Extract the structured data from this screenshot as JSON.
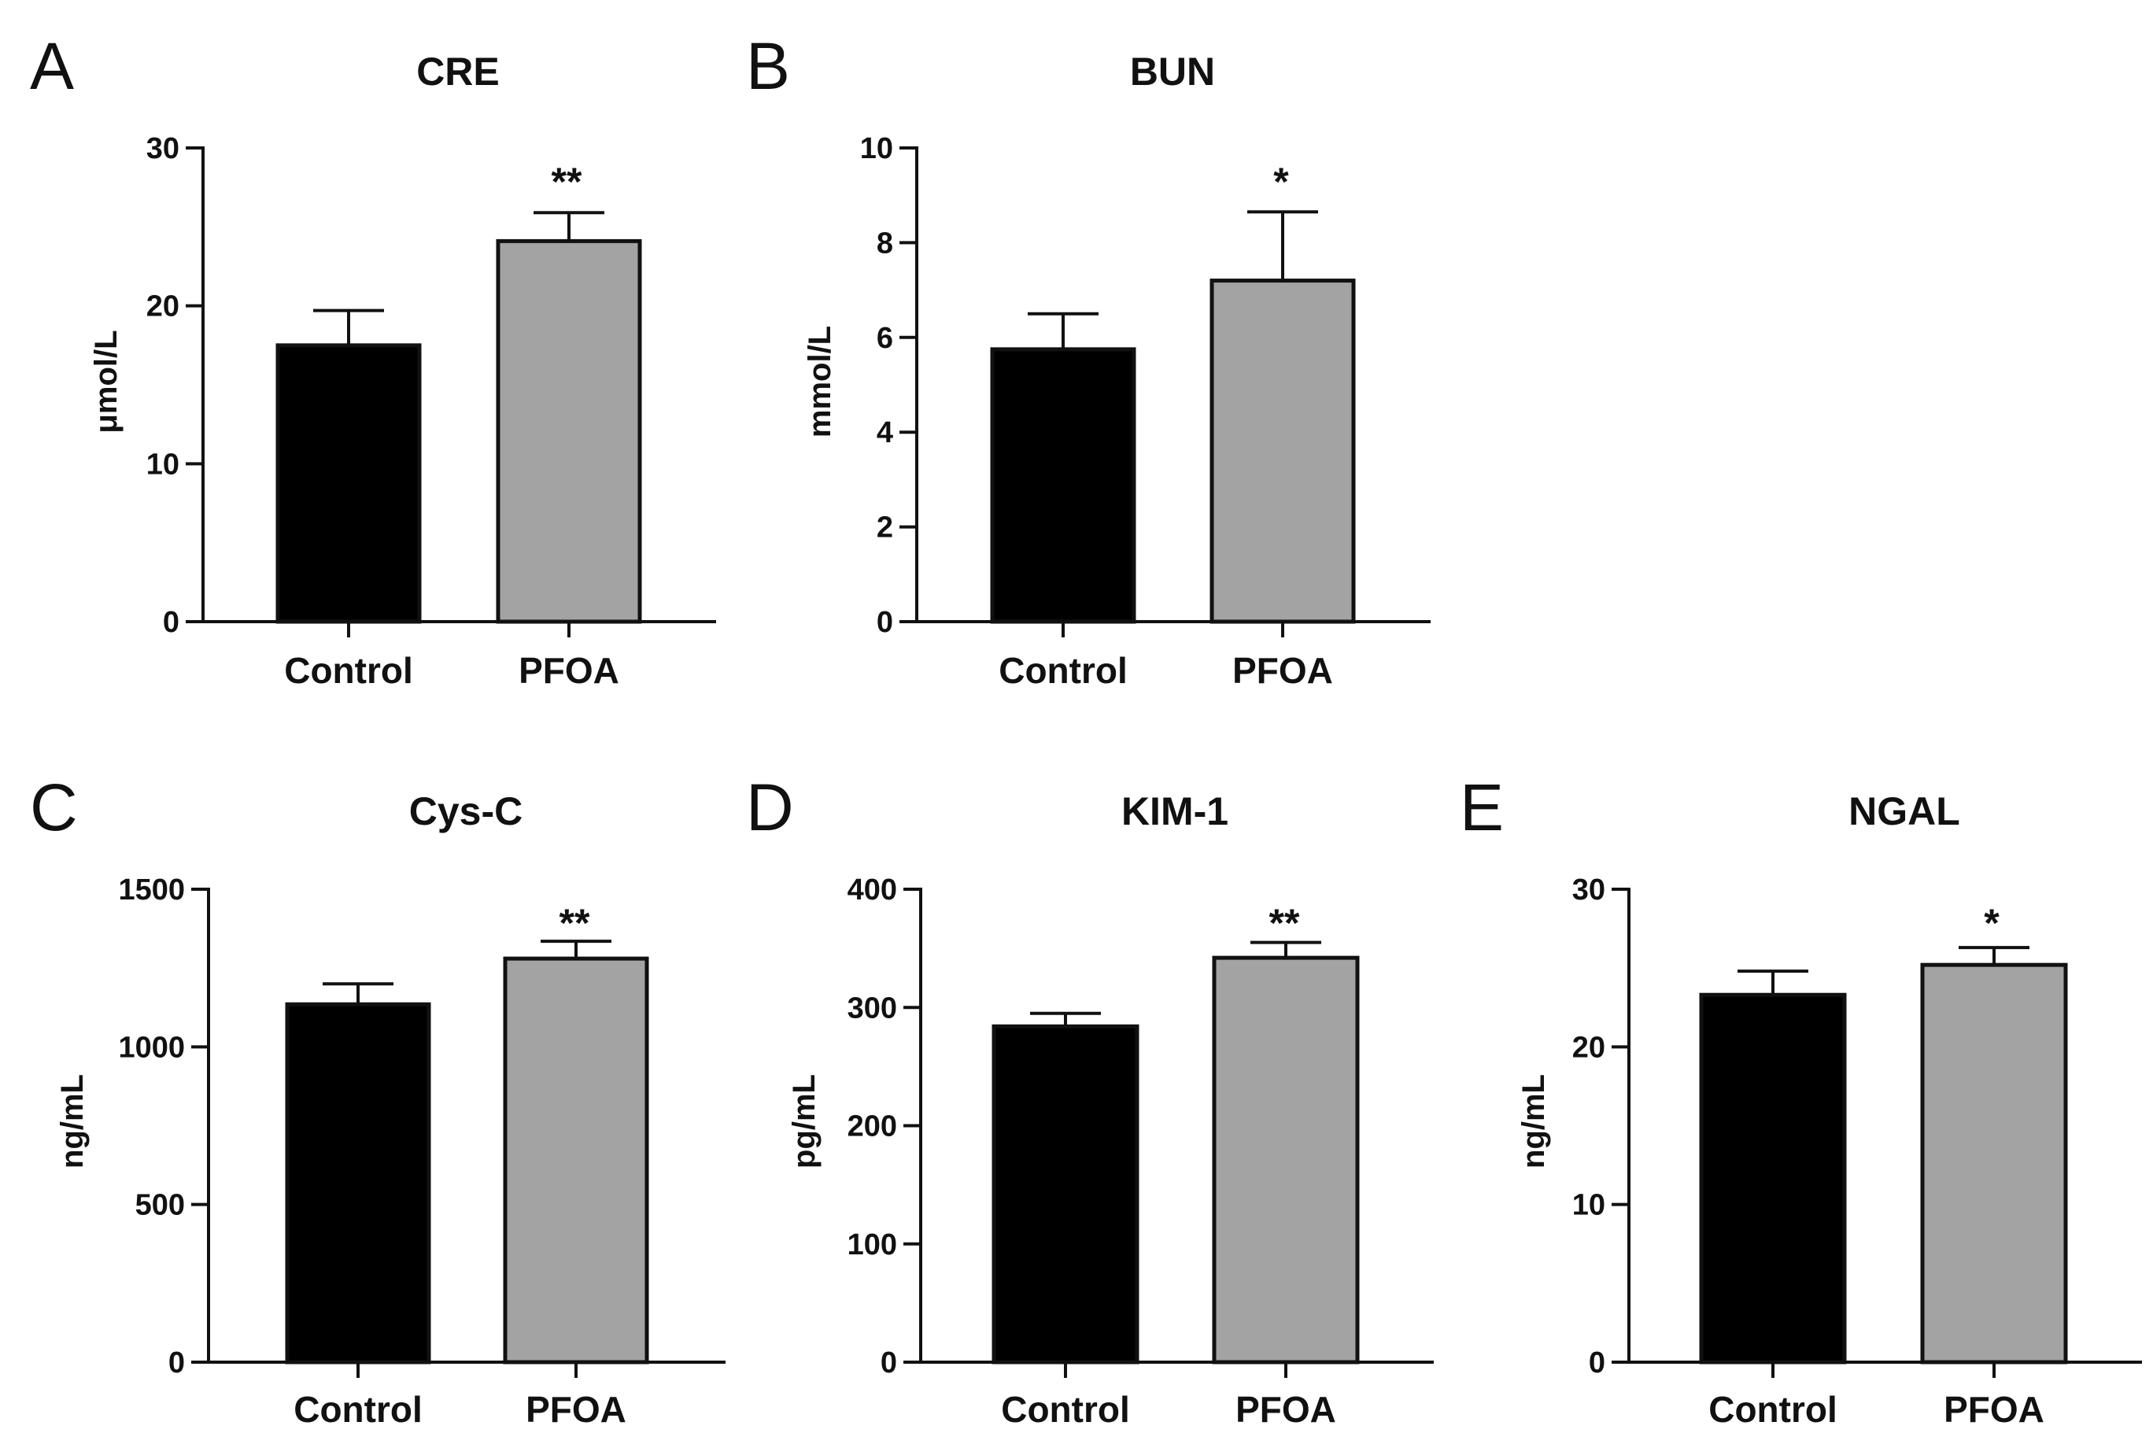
{
  "chart_data": [
    {
      "panel": "A",
      "type": "bar",
      "title": "CRE",
      "xlabel": "",
      "ylabel": "μmol/L",
      "ylim": [
        0,
        30
      ],
      "yticks": [
        0,
        10,
        20,
        30
      ],
      "categories": [
        "Control",
        "PFOA"
      ],
      "values": [
        17.5,
        24.1
      ],
      "errors": [
        2.2,
        1.8
      ],
      "colors": [
        "#000000",
        "#a3a3a3"
      ],
      "significance": [
        "",
        "**"
      ]
    },
    {
      "panel": "B",
      "type": "bar",
      "title": "BUN",
      "xlabel": "",
      "ylabel": "mmol/L",
      "ylim": [
        0,
        10
      ],
      "yticks": [
        0,
        2,
        4,
        6,
        8,
        10
      ],
      "categories": [
        "Control",
        "PFOA"
      ],
      "values": [
        5.75,
        7.2
      ],
      "errors": [
        0.75,
        1.45
      ],
      "colors": [
        "#000000",
        "#a3a3a3"
      ],
      "significance": [
        "",
        "*"
      ]
    },
    {
      "panel": "C",
      "type": "bar",
      "title": "Cys-C",
      "xlabel": "",
      "ylabel": "ng/mL",
      "ylim": [
        0,
        1500
      ],
      "yticks": [
        0,
        500,
        1000,
        1500
      ],
      "categories": [
        "Control",
        "PFOA"
      ],
      "values": [
        1135,
        1280
      ],
      "errors": [
        65,
        55
      ],
      "colors": [
        "#000000",
        "#a3a3a3"
      ],
      "significance": [
        "",
        "**"
      ]
    },
    {
      "panel": "D",
      "type": "bar",
      "title": "KIM-1",
      "xlabel": "",
      "ylabel": "pg/mL",
      "ylim": [
        0,
        400
      ],
      "yticks": [
        0,
        100,
        200,
        300,
        400
      ],
      "categories": [
        "Control",
        "PFOA"
      ],
      "values": [
        284,
        342
      ],
      "errors": [
        11,
        13
      ],
      "colors": [
        "#000000",
        "#a3a3a3"
      ],
      "significance": [
        "",
        "**"
      ]
    },
    {
      "panel": "E",
      "type": "bar",
      "title": "NGAL",
      "xlabel": "",
      "ylabel": "ng/mL",
      "ylim": [
        0,
        30
      ],
      "yticks": [
        0,
        10,
        20,
        30
      ],
      "categories": [
        "Control",
        "PFOA"
      ],
      "values": [
        23.3,
        25.2
      ],
      "errors": [
        1.5,
        1.1
      ],
      "colors": [
        "#000000",
        "#a3a3a3"
      ],
      "significance": [
        "",
        "*"
      ]
    }
  ]
}
